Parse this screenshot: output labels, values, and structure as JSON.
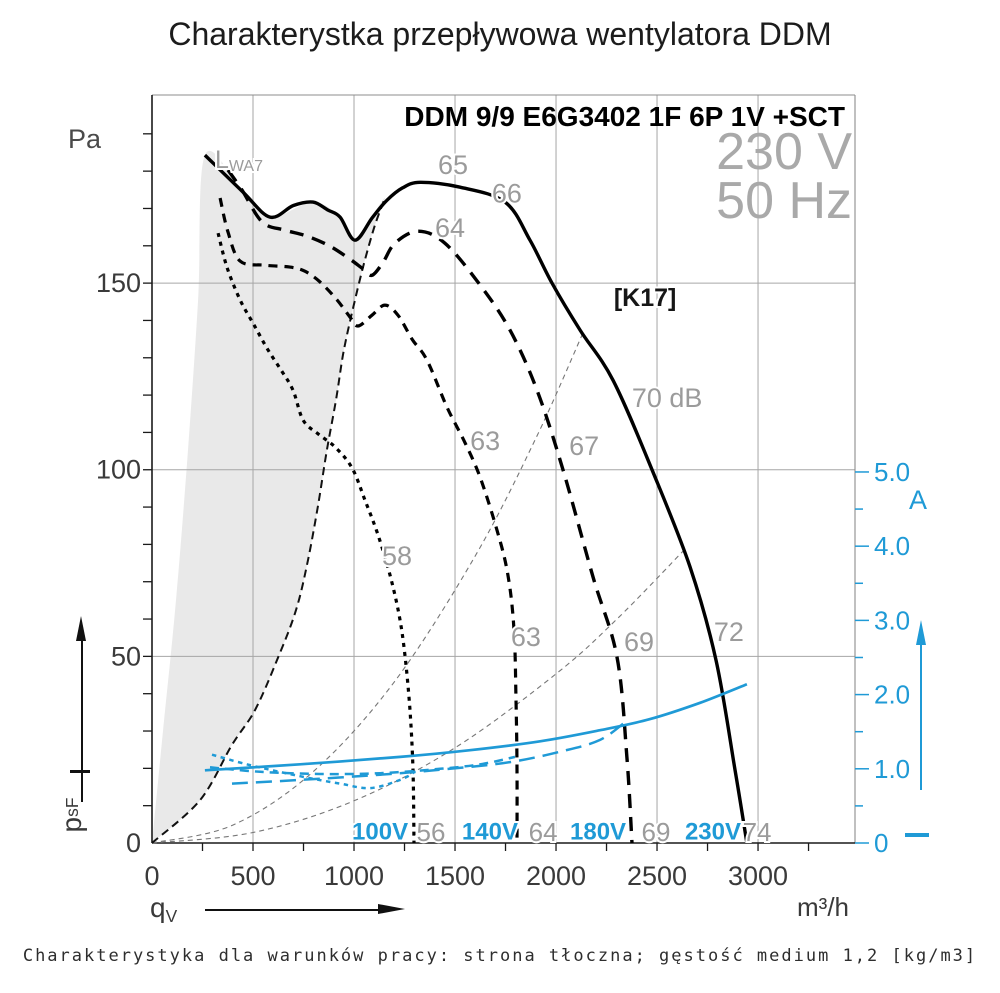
{
  "page": {
    "title": "Charakterystka przepływowa wentylatora DDM",
    "caption": "Charakterystyka dla warunków pracy: strona tłoczna; gęstość medium 1,2 [kg/m3]"
  },
  "header": {
    "model": "DDM 9/9 E6G3402 1F 6P 1V +SCT",
    "voltage": "230 V",
    "frequency": "50 Hz"
  },
  "axis_labels": {
    "pressure_unit": "Pa",
    "flow_unit": "m³/h",
    "flow_symbol": "q",
    "flow_symbol_sub": "V",
    "pressure_symbol": "p",
    "pressure_symbol_sub": "sF",
    "current_unit": "A"
  },
  "chart_data": {
    "type": "line",
    "title": "Charakterystka przepływowa wentylatora DDM",
    "xlabel": "qV [m³/h]",
    "ylabel_left": "psF [Pa]",
    "ylabel_right": "I [A]",
    "style": {
      "blue": "#1f9ad6",
      "gray_label": "#9b9b9b",
      "grid": "#a6a6a6",
      "frame": "#8c8c8c",
      "axis": "#1a1a1a",
      "text": "#3a3a3a",
      "region_fill": "#e9e9e9",
      "dark_label": "#161616"
    },
    "axes": {
      "x": {
        "min": 0,
        "max": 3480,
        "px": [
          152,
          855
        ],
        "grid": [
          500,
          1000,
          1500,
          2000,
          2500,
          3000
        ],
        "ticks": [
          {
            "v": 0,
            "t": "0"
          },
          {
            "v": 500,
            "t": "500"
          },
          {
            "v": 1000,
            "t": "1000"
          },
          {
            "v": 1500,
            "t": "1500"
          },
          {
            "v": 2000,
            "t": "2000"
          },
          {
            "v": 2500,
            "t": "2500"
          },
          {
            "v": 3000,
            "t": "3000"
          }
        ],
        "minor_step": 250
      },
      "y_pressure": {
        "min": 0,
        "max": 200.4,
        "px": [
          843,
          95
        ],
        "grid": [
          50,
          100,
          150
        ],
        "ticks": [
          {
            "v": 0,
            "t": "0"
          },
          {
            "v": 50,
            "t": "50"
          },
          {
            "v": 100,
            "t": "100"
          },
          {
            "v": 150,
            "t": "150"
          }
        ],
        "minor_step": 10,
        "minor_max": 190
      },
      "y_current": {
        "min": 0,
        "max": 10.08,
        "px": [
          843,
          95
        ],
        "ticks": [
          {
            "v": 0,
            "t": "0"
          },
          {
            "v": 1,
            "t": "1.0"
          },
          {
            "v": 2,
            "t": "2.0"
          },
          {
            "v": 3,
            "t": "3.0"
          },
          {
            "v": 4,
            "t": "4.0"
          },
          {
            "v": 5,
            "t": "5.0"
          }
        ],
        "minor_step": 0.5,
        "minor_max": 5
      }
    },
    "region": {
      "name": "unstable-operating-region",
      "points": [
        [
          0,
          0
        ],
        [
          55,
          30.3
        ],
        [
          119,
          65.1
        ],
        [
          178,
          105.3
        ],
        [
          228,
          145.5
        ],
        [
          262,
          184.3
        ],
        [
          450,
          174.4
        ],
        [
          584,
          167.7
        ],
        [
          797,
          171.7
        ],
        [
          931,
          167.7
        ],
        [
          1005,
          161.5
        ],
        [
          1079,
          167.2
        ],
        [
          1153,
          172.8
        ],
        [
          1104,
          165.6
        ],
        [
          1054,
          156.2
        ],
        [
          1005,
          145.5
        ],
        [
          950,
          132.1
        ],
        [
          911,
          118.7
        ],
        [
          866,
          105.3
        ],
        [
          822,
          90.5
        ],
        [
          772,
          75.8
        ],
        [
          713,
          62.4
        ],
        [
          619,
          49
        ],
        [
          510,
          35.6
        ],
        [
          396,
          26.3
        ],
        [
          238,
          11.5
        ],
        [
          0,
          0
        ]
      ]
    },
    "curves": [
      {
        "name": "system-curve-1",
        "axis": "p",
        "color": "#777",
        "width": 1.1,
        "dash": "5,4",
        "points": [
          [
            0,
            0
          ],
          [
            400,
            4.8
          ],
          [
            800,
            19.2
          ],
          [
            1200,
            43.2
          ],
          [
            1600,
            76.9
          ],
          [
            1900,
            108.4
          ],
          [
            2133,
            136.6
          ]
        ]
      },
      {
        "name": "system-curve-2",
        "axis": "p",
        "color": "#777",
        "width": 1.1,
        "dash": "5,4",
        "points": [
          [
            0,
            0
          ],
          [
            500,
            2.8
          ],
          [
            1000,
            11.3
          ],
          [
            1500,
            25.5
          ],
          [
            2000,
            45.3
          ],
          [
            2300,
            59.9
          ],
          [
            2629,
            78.2
          ]
        ]
      },
      {
        "name": "stall-boundary",
        "axis": "p",
        "color": "#111",
        "width": 2,
        "dash": "8,5",
        "points": [
          [
            0,
            0
          ],
          [
            238,
            11.5
          ],
          [
            396,
            26.3
          ],
          [
            510,
            35.6
          ],
          [
            619,
            49
          ],
          [
            713,
            62.4
          ],
          [
            772,
            75.8
          ],
          [
            822,
            90.5
          ],
          [
            866,
            105.3
          ],
          [
            911,
            118.7
          ],
          [
            950,
            132.1
          ],
          [
            1005,
            145.5
          ],
          [
            1054,
            156.2
          ],
          [
            1104,
            165.6
          ],
          [
            1153,
            172.8
          ]
        ]
      },
      {
        "name": "pressure-100V",
        "axis": "p",
        "color": "#000",
        "width": 3.2,
        "dash": "4,5",
        "points": [
          [
            327,
            163.4
          ],
          [
            371,
            154.3
          ],
          [
            436,
            145.5
          ],
          [
            505,
            138.8
          ],
          [
            574,
            132.1
          ],
          [
            639,
            126.7
          ],
          [
            698,
            121.3
          ],
          [
            748,
            113.3
          ],
          [
            822,
            109.6
          ],
          [
            906,
            106.1
          ],
          [
            990,
            100.5
          ],
          [
            1054,
            91.9
          ],
          [
            1119,
            82.5
          ],
          [
            1178,
            71.8
          ],
          [
            1223,
            61.1
          ],
          [
            1252,
            50.4
          ],
          [
            1277,
            35.6
          ],
          [
            1292,
            19.6
          ],
          [
            1297,
            0
          ]
        ]
      },
      {
        "name": "pressure-140V",
        "axis": "p",
        "color": "#000",
        "width": 3.2,
        "dash": "9,7",
        "points": [
          [
            337,
            172.8
          ],
          [
            376,
            163.7
          ],
          [
            436,
            155.9
          ],
          [
            559,
            154.8
          ],
          [
            683,
            154.3
          ],
          [
            757,
            153.2
          ],
          [
            832,
            150.3
          ],
          [
            916,
            145.5
          ],
          [
            980,
            140.9
          ],
          [
            1020,
            138.5
          ],
          [
            1089,
            141.4
          ],
          [
            1153,
            144.1
          ],
          [
            1218,
            141.4
          ],
          [
            1287,
            135
          ],
          [
            1361,
            129.4
          ],
          [
            1460,
            116.8
          ],
          [
            1550,
            107.2
          ],
          [
            1624,
            98
          ],
          [
            1708,
            83.8
          ],
          [
            1762,
            71.8
          ],
          [
            1792,
            57.1
          ],
          [
            1802,
            38.3
          ],
          [
            1807,
            19.6
          ],
          [
            1807,
            0
          ]
        ]
      },
      {
        "name": "pressure-180V",
        "axis": "p",
        "color": "#000",
        "width": 3.4,
        "dash": "14,9",
        "points": [
          [
            376,
            180.3
          ],
          [
            446,
            174.9
          ],
          [
            545,
            166.4
          ],
          [
            658,
            164.2
          ],
          [
            767,
            162.6
          ],
          [
            881,
            159.9
          ],
          [
            980,
            156.4
          ],
          [
            1045,
            153.8
          ],
          [
            1089,
            152.1
          ],
          [
            1144,
            155.6
          ],
          [
            1203,
            160.7
          ],
          [
            1317,
            163.9
          ],
          [
            1450,
            160.7
          ],
          [
            1624,
            149.5
          ],
          [
            1772,
            137.4
          ],
          [
            1906,
            121.3
          ],
          [
            2035,
            99.9
          ],
          [
            2183,
            71.3
          ],
          [
            2302,
            49.8
          ],
          [
            2351,
            23
          ],
          [
            2376,
            0
          ]
        ]
      },
      {
        "name": "pressure-230V",
        "axis": "p",
        "color": "#000",
        "width": 3.4,
        "dash": null,
        "points": [
          [
            262,
            184.3
          ],
          [
            450,
            174.4
          ],
          [
            584,
            167.7
          ],
          [
            700,
            170.8
          ],
          [
            797,
            171.7
          ],
          [
            870,
            169.6
          ],
          [
            931,
            167.7
          ],
          [
            1005,
            161.5
          ],
          [
            1090,
            167.5
          ],
          [
            1163,
            172.2
          ],
          [
            1240,
            175.5
          ],
          [
            1327,
            177
          ],
          [
            1525,
            175.7
          ],
          [
            1748,
            171.7
          ],
          [
            1871,
            161.5
          ],
          [
            1980,
            150
          ],
          [
            2119,
            137.4
          ],
          [
            2282,
            124
          ],
          [
            2475,
            100
          ],
          [
            2663,
            74
          ],
          [
            2792,
            49
          ],
          [
            2886,
            19.6
          ],
          [
            2945,
            0
          ]
        ]
      },
      {
        "name": "current-100V",
        "axis": "i",
        "color": "#1f9ad6",
        "width": 2.5,
        "dash": "4.5,4.5",
        "points": [
          [
            297,
            1.19
          ],
          [
            485,
            1.05
          ],
          [
            733,
            0.9
          ],
          [
            931,
            0.8
          ],
          [
            1079,
            0.74
          ],
          [
            1228,
            0.85
          ],
          [
            1302,
            0.96
          ]
        ]
      },
      {
        "name": "current-140V",
        "axis": "i",
        "color": "#1f9ad6",
        "width": 2.5,
        "dash": "9,6",
        "points": [
          [
            287,
            1.02
          ],
          [
            535,
            0.96
          ],
          [
            832,
            0.93
          ],
          [
            1129,
            0.94
          ],
          [
            1426,
            1.0
          ],
          [
            1624,
            1.06
          ],
          [
            1797,
            1.16
          ]
        ]
      },
      {
        "name": "current-180V",
        "axis": "i",
        "color": "#1f9ad6",
        "width": 2.5,
        "dash": "16,8",
        "points": [
          [
            396,
            0.8
          ],
          [
            733,
            0.85
          ],
          [
            1129,
            0.92
          ],
          [
            1475,
            1.0
          ],
          [
            1772,
            1.09
          ],
          [
            2020,
            1.23
          ],
          [
            2218,
            1.39
          ],
          [
            2356,
            1.66
          ]
        ]
      },
      {
        "name": "current-230V",
        "axis": "i",
        "color": "#1f9ad6",
        "width": 2.7,
        "dash": null,
        "points": [
          [
            262,
            0.98
          ],
          [
            733,
            1.06
          ],
          [
            1228,
            1.16
          ],
          [
            1574,
            1.25
          ],
          [
            1921,
            1.37
          ],
          [
            2218,
            1.52
          ],
          [
            2465,
            1.67
          ],
          [
            2713,
            1.89
          ],
          [
            2945,
            2.14
          ]
        ]
      }
    ],
    "annotations": [
      {
        "text": "L",
        "sub": "WA7",
        "q": 312,
        "v": 183,
        "size": 25,
        "color": "#9b9b9b",
        "anchor": "start"
      },
      {
        "text": "65",
        "q": 1490,
        "v": 181.6
      },
      {
        "text": "66",
        "q": 1757,
        "v": 174
      },
      {
        "text": "64",
        "q": 1475,
        "v": 164.8
      },
      {
        "text": "63",
        "q": 1649,
        "v": 107.7
      },
      {
        "text": "67",
        "q": 2139,
        "v": 106.4
      },
      {
        "text": "70 dB",
        "q": 2550,
        "v": 119.2
      },
      {
        "text": "58",
        "q": 1213,
        "v": 76.9
      },
      {
        "text": "63",
        "q": 1851,
        "v": 55.2
      },
      {
        "text": "69",
        "q": 2411,
        "v": 53.8
      },
      {
        "text": "72",
        "q": 2856,
        "v": 56.5
      },
      {
        "text": "[K17]",
        "q": 2441,
        "v": 146,
        "size": 25,
        "weight": "600",
        "color": "#161616"
      }
    ],
    "voltage_row": [
      {
        "text": "100V",
        "q": 1129,
        "style": "blue"
      },
      {
        "text": "56",
        "q": 1381,
        "style": "gray"
      },
      {
        "text": "140V",
        "q": 1673,
        "style": "blue"
      },
      {
        "text": "64",
        "q": 1936,
        "style": "gray"
      },
      {
        "text": "180V",
        "q": 2208,
        "style": "blue"
      },
      {
        "text": "69",
        "q": 2495,
        "style": "gray"
      },
      {
        "text": "230V",
        "q": 2777,
        "style": "blue"
      },
      {
        "text": "74",
        "q": 2995,
        "style": "gray"
      }
    ]
  }
}
